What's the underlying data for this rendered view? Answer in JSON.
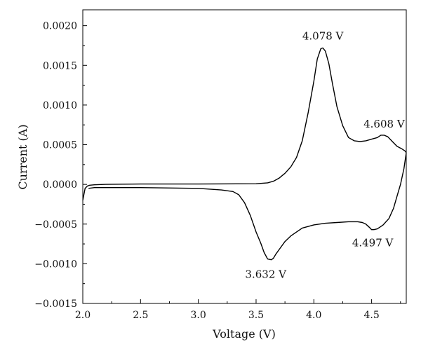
{
  "chart_data": {
    "type": "line",
    "title": "",
    "xlabel": "Voltage (V)",
    "ylabel": "Current (A)",
    "xlim": [
      2.0,
      4.8
    ],
    "ylim": [
      -0.0015,
      0.0022
    ],
    "x_ticks": [
      2.0,
      2.5,
      3.0,
      3.5,
      4.0,
      4.5
    ],
    "x_tick_labels": [
      "2.0",
      "2.5",
      "3.0",
      "3.5",
      "4.0",
      "4.5"
    ],
    "y_ticks": [
      -0.0015,
      -0.001,
      -0.0005,
      0.0,
      0.0005,
      0.001,
      0.0015,
      0.002
    ],
    "y_tick_labels": [
      "−0.0015",
      "−0.0010",
      "−0.0005",
      "0.0000",
      "0.0005",
      "0.0010",
      "0.0015",
      "0.0020"
    ],
    "grid": false,
    "line_color": "#000000",
    "series": [
      {
        "x": [
          2.0,
          2.02,
          2.04,
          2.06,
          2.1,
          2.2,
          2.5,
          3.0,
          3.5,
          3.6,
          3.65,
          3.7,
          3.75,
          3.8,
          3.85,
          3.9,
          3.95,
          4.0,
          4.03,
          4.06,
          4.078,
          4.1,
          4.13,
          4.16,
          4.2,
          4.25,
          4.3,
          4.35,
          4.4,
          4.45,
          4.5,
          4.55,
          4.58,
          4.608,
          4.64,
          4.68,
          4.72,
          4.76,
          4.79,
          4.8
        ],
        "y": [
          -0.0002,
          -5e-05,
          -2e-05,
          -1e-05,
          -5e-06,
          0.0,
          5e-06,
          5e-06,
          8e-06,
          2e-05,
          4e-05,
          8e-05,
          0.00014,
          0.00022,
          0.00034,
          0.00055,
          0.0009,
          0.0013,
          0.00158,
          0.00171,
          0.00172,
          0.00168,
          0.00152,
          0.00128,
          0.00098,
          0.00074,
          0.00059,
          0.00055,
          0.00054,
          0.00055,
          0.00057,
          0.00059,
          0.00062,
          0.00062,
          0.0006,
          0.00054,
          0.00048,
          0.00045,
          0.00042,
          0.0004
        ]
      },
      {
        "x": [
          4.8,
          4.78,
          4.75,
          4.72,
          4.69,
          4.65,
          4.6,
          4.55,
          4.52,
          4.5,
          4.48,
          4.45,
          4.42,
          4.38,
          4.35,
          4.3,
          4.2,
          4.1,
          4.0,
          3.95,
          3.9,
          3.85,
          3.8,
          3.75,
          3.7,
          3.67,
          3.65,
          3.632,
          3.6,
          3.57,
          3.54,
          3.5,
          3.45,
          3.4,
          3.35,
          3.3,
          3.2,
          3.0,
          2.5,
          2.1,
          2.05
        ],
        "y": [
          0.0004,
          0.0002,
          0.0,
          -0.00015,
          -0.0003,
          -0.00043,
          -0.00051,
          -0.00056,
          -0.00057,
          -0.00057,
          -0.00054,
          -0.0005,
          -0.00048,
          -0.00047,
          -0.00047,
          -0.00047,
          -0.00048,
          -0.00049,
          -0.00051,
          -0.00053,
          -0.00055,
          -0.0006,
          -0.00065,
          -0.00072,
          -0.00082,
          -0.00088,
          -0.00093,
          -0.00095,
          -0.00094,
          -0.00086,
          -0.00074,
          -0.0006,
          -0.00039,
          -0.00023,
          -0.00013,
          -9e-05,
          -7e-05,
          -5e-05,
          -4e-05,
          -4e-05,
          -5e-05
        ]
      }
    ],
    "annotations": [
      {
        "text": "4.078 V",
        "x": 4.078,
        "y": 0.00172
      },
      {
        "text": "4.608 V",
        "x": 4.608,
        "y": 0.00062
      },
      {
        "text": "4.497 V",
        "x": 4.497,
        "y": -0.00057
      },
      {
        "text": "3.632 V",
        "x": 3.632,
        "y": -0.00095
      }
    ]
  }
}
